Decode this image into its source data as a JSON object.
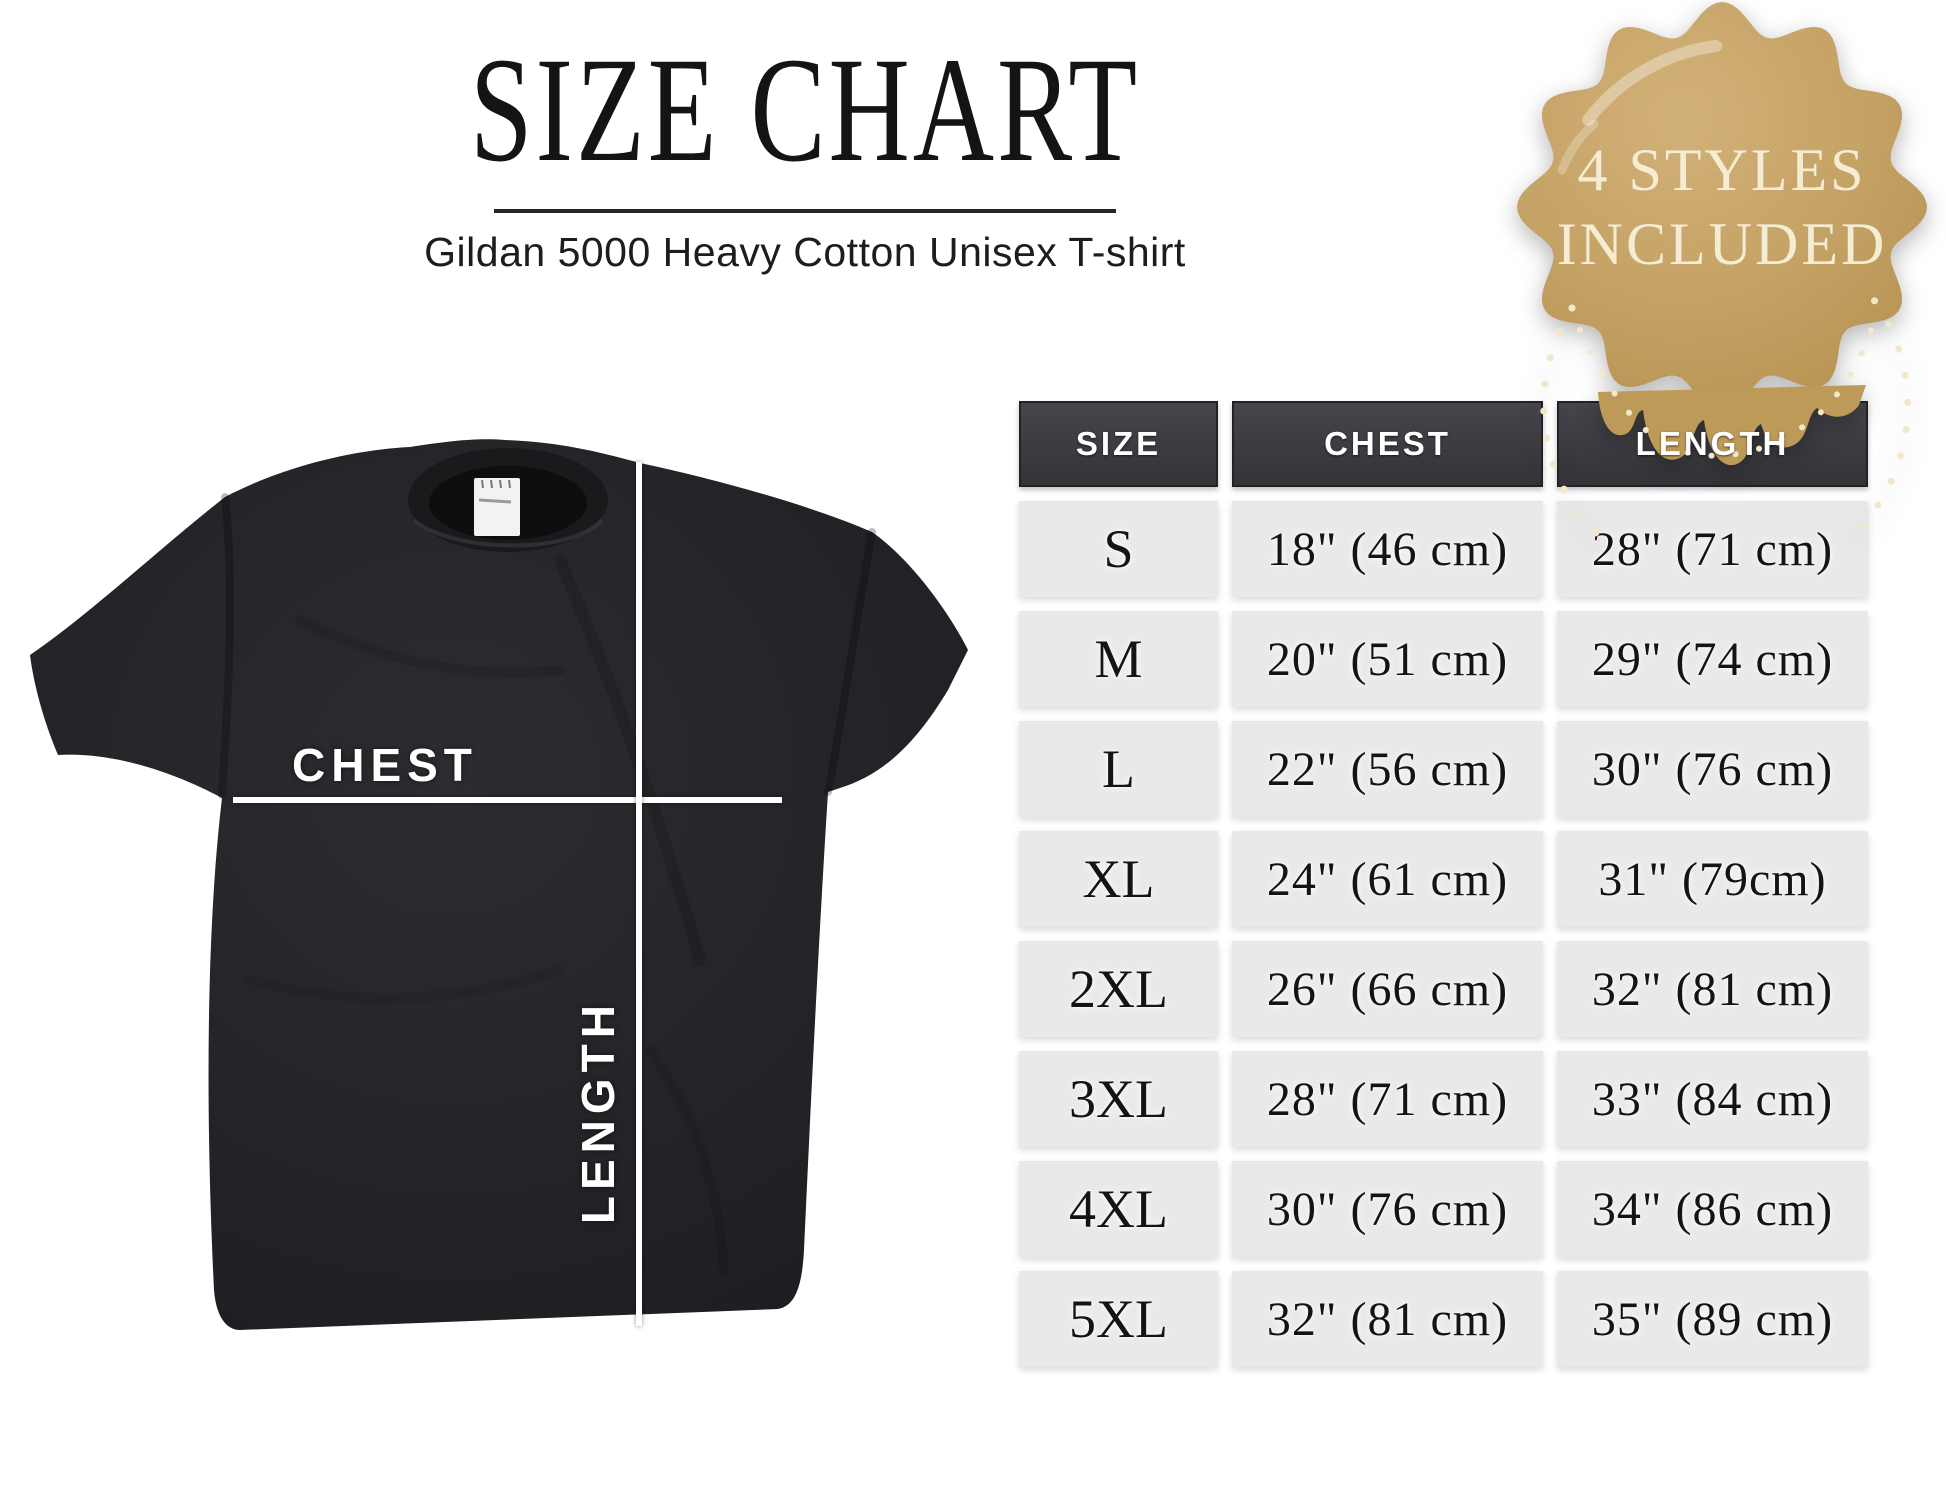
{
  "title": "SIZE CHART",
  "subtitle": "Gildan 5000 Heavy Cotton Unisex T-shirt",
  "badge": {
    "line1": "4 STYLES",
    "line2": "INCLUDED"
  },
  "shirt": {
    "chest_label": "CHEST",
    "length_label": "LENGTH"
  },
  "table": {
    "headers": [
      "SIZE",
      "CHEST",
      "LENGTH"
    ],
    "rows": [
      {
        "size": "S",
        "chest": "18\" (46 cm)",
        "length": "28\" (71 cm)"
      },
      {
        "size": "M",
        "chest": "20\" (51 cm)",
        "length": "29\" (74 cm)"
      },
      {
        "size": "L",
        "chest": "22\" (56 cm)",
        "length": "30\" (76 cm)"
      },
      {
        "size": "XL",
        "chest": "24\" (61 cm)",
        "length": "31\" (79cm)"
      },
      {
        "size": "2XL",
        "chest": "26\" (66 cm)",
        "length": "32\" (81 cm)"
      },
      {
        "size": "3XL",
        "chest": "28\" (71 cm)",
        "length": "33\" (84 cm)"
      },
      {
        "size": "4XL",
        "chest": "30\" (76 cm)",
        "length": "34\" (86 cm)"
      },
      {
        "size": "5XL",
        "chest": "32\" (81 cm)",
        "length": "35\" (89 cm)"
      }
    ]
  },
  "colors": {
    "badge_tan": "#bd9a58",
    "badge_tan_light": "#cfae76",
    "badge_cream": "#f5ecd4",
    "header_bg": "#39383d",
    "cell_bg": "#e9e9e9",
    "shirt_black": "#232226"
  },
  "chart_data": {
    "type": "table",
    "title": "SIZE CHART",
    "subtitle": "Gildan 5000 Heavy Cotton Unisex T-shirt",
    "columns": [
      "SIZE",
      "CHEST",
      "LENGTH"
    ],
    "rows": [
      [
        "S",
        "18\" (46 cm)",
        "28\" (71 cm)"
      ],
      [
        "M",
        "20\" (51 cm)",
        "29\" (74 cm)"
      ],
      [
        "L",
        "22\" (56 cm)",
        "30\" (76 cm)"
      ],
      [
        "XL",
        "24\" (61 cm)",
        "31\" (79cm)"
      ],
      [
        "2XL",
        "26\" (66 cm)",
        "32\" (81 cm)"
      ],
      [
        "3XL",
        "28\" (71 cm)",
        "33\" (84 cm)"
      ],
      [
        "4XL",
        "30\" (76 cm)",
        "34\" (86 cm)"
      ],
      [
        "5XL",
        "32\" (81 cm)",
        "35\" (89 cm)"
      ]
    ]
  }
}
